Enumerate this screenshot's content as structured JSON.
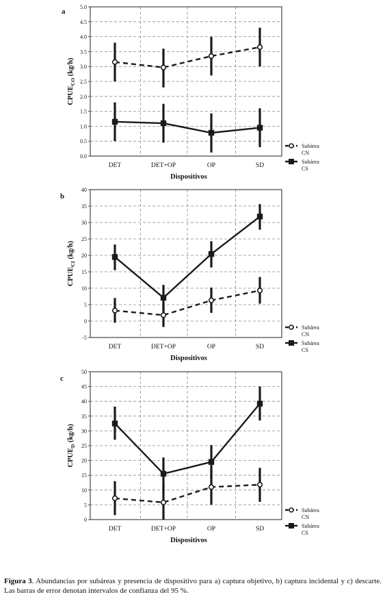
{
  "caption": {
    "label": "Figura 3",
    "text": ". Abundancias por subáreas y presencia de dispositivo para a) captura objetivo, b) captura incidental y c) descarte. Las barras de error denotan intervalos de confianza del 95 %."
  },
  "series_style": {
    "CN": {
      "dash": true,
      "marker": "circle"
    },
    "CS": {
      "dash": false,
      "marker": "square"
    }
  },
  "chart_data": [
    {
      "panel_label": "a",
      "type": "line",
      "xlabel": "Dispositivos",
      "ylabel_main": "CPUE",
      "ylabel_sub": "CO",
      "ylabel_unit": " (kg/h)",
      "categories": [
        "DET",
        "DET+OP",
        "OP",
        "SD"
      ],
      "ylim": [
        0,
        5
      ],
      "ytick_step": 0.5,
      "ytick_decimals": 1,
      "grid": true,
      "legend_position": "right",
      "series": [
        {
          "name": "Subárea CN",
          "name_lines": [
            "Subárea",
            "CN"
          ],
          "key": "CN",
          "values": [
            3.15,
            2.97,
            3.35,
            3.65
          ],
          "ci_low": [
            2.5,
            2.3,
            2.7,
            3.0
          ],
          "ci_high": [
            3.8,
            3.6,
            4.0,
            4.3
          ]
        },
        {
          "name": "Subárea CS",
          "name_lines": [
            "Subárea",
            "CS"
          ],
          "key": "CS",
          "values": [
            1.15,
            1.1,
            0.78,
            0.95
          ],
          "ci_low": [
            0.5,
            0.45,
            0.12,
            0.3
          ],
          "ci_high": [
            1.8,
            1.75,
            1.43,
            1.6
          ]
        }
      ]
    },
    {
      "panel_label": "b",
      "type": "line",
      "xlabel": "Dispositivos",
      "ylabel_main": "CPUE",
      "ylabel_sub": "CI",
      "ylabel_unit": " (kg/h)",
      "categories": [
        "DET",
        "DET+OP",
        "OP",
        "SD"
      ],
      "ylim": [
        -5,
        40
      ],
      "ytick_step": 5,
      "ytick_decimals": 0,
      "grid": true,
      "legend_position": "right",
      "series": [
        {
          "name": "Subárea CN",
          "name_lines": [
            "Subárea",
            "CN"
          ],
          "key": "CN",
          "values": [
            3.2,
            1.8,
            6.3,
            9.3
          ],
          "ci_low": [
            -0.5,
            -1.8,
            2.5,
            5.3
          ],
          "ci_high": [
            7.0,
            5.5,
            10.2,
            13.4
          ]
        },
        {
          "name": "Subárea CS",
          "name_lines": [
            "Subárea",
            "CS"
          ],
          "key": "CS",
          "values": [
            19.5,
            7.1,
            20.4,
            31.8
          ],
          "ci_low": [
            15.5,
            3.0,
            16.3,
            27.8
          ],
          "ci_high": [
            23.3,
            11.0,
            24.3,
            35.6
          ]
        }
      ]
    },
    {
      "panel_label": "c",
      "type": "line",
      "xlabel": "Dispositivos",
      "ylabel_main": "CPUE",
      "ylabel_sub": "D",
      "ylabel_unit": " (kg/h)",
      "categories": [
        "DET",
        "DET+OP",
        "OP",
        "SD"
      ],
      "ylim": [
        0,
        50
      ],
      "ytick_step": 5,
      "ytick_decimals": 0,
      "grid": true,
      "legend_position": "right",
      "series": [
        {
          "name": "Subárea CN",
          "name_lines": [
            "Subárea",
            "CN"
          ],
          "key": "CN",
          "values": [
            7.2,
            5.8,
            11.0,
            11.8
          ],
          "ci_low": [
            1.5,
            0.0,
            5.0,
            6.0
          ],
          "ci_high": [
            13.0,
            11.5,
            17.0,
            17.5
          ]
        },
        {
          "name": "Subárea CS",
          "name_lines": [
            "Subárea",
            "CS"
          ],
          "key": "CS",
          "values": [
            32.5,
            15.5,
            19.5,
            39.2
          ],
          "ci_low": [
            27.0,
            10.0,
            14.0,
            33.5
          ],
          "ci_high": [
            38.2,
            21.0,
            25.2,
            45.0
          ]
        }
      ]
    }
  ]
}
